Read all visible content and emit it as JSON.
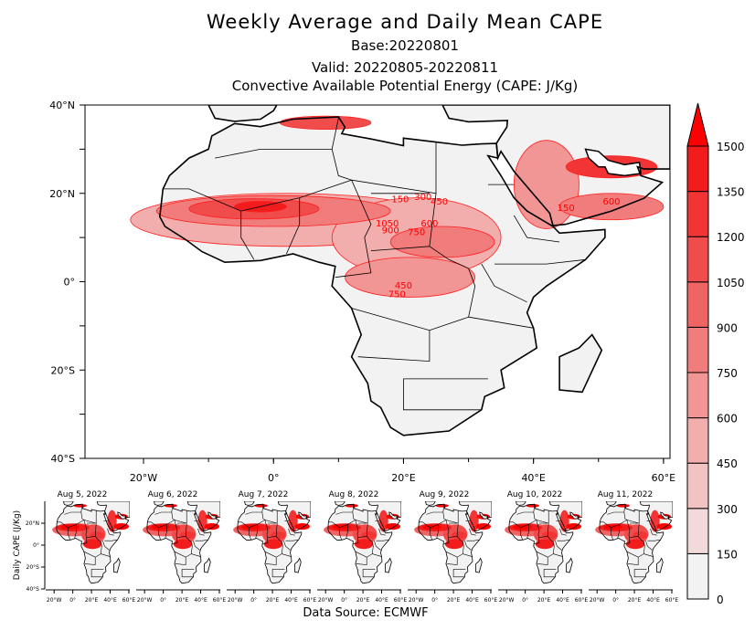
{
  "header": {
    "title": "Weekly Average and Daily Mean CAPE",
    "base": "Base:20220801",
    "valid": "Valid: 20220805-20220811",
    "subtitle": "Convective Available Potential Energy (CAPE: J/Kg)"
  },
  "footer": {
    "source": "Data Source: ECMWF"
  },
  "chart_data": {
    "type": "heatmap",
    "title": "Weekly Average and Daily Mean CAPE",
    "units": "J/Kg",
    "lon_range": [
      -29,
      61
    ],
    "lat_range": [
      -40,
      40
    ],
    "x_ticks": [
      {
        "v": -20,
        "label": "20°W"
      },
      {
        "v": 0,
        "label": "0°"
      },
      {
        "v": 20,
        "label": "20°E"
      },
      {
        "v": 40,
        "label": "40°E"
      },
      {
        "v": 60,
        "label": "60°E"
      }
    ],
    "y_ticks": [
      {
        "v": 40,
        "label": "40°N"
      },
      {
        "v": 20,
        "label": "20°N"
      },
      {
        "v": 0,
        "label": "0°"
      },
      {
        "v": -20,
        "label": "20°S"
      },
      {
        "v": -40,
        "label": "40°S"
      }
    ],
    "colorbar": {
      "levels": [
        "0",
        "150",
        "300",
        "450",
        "600",
        "750",
        "900",
        "1050",
        "1200",
        "1350",
        "1500"
      ],
      "colors": [
        "#f2f2f2",
        "#f3dada",
        "#f2c3c3",
        "#f2adad",
        "#f29595",
        "#f07c7c",
        "#f06464",
        "#f04c4c",
        "#f23434",
        "#f21c1c",
        "#ff0000"
      ]
    },
    "cape_regions": [
      {
        "lon": 2,
        "lat": 14,
        "rlon": 24,
        "rlat": 6,
        "level": 3
      },
      {
        "lon": 22,
        "lat": 10,
        "rlon": 13,
        "rlat": 9,
        "level": 3
      },
      {
        "lon": 21,
        "lat": 1,
        "rlon": 10,
        "rlat": 4.5,
        "level": 4
      },
      {
        "lon": 26,
        "lat": 9,
        "rlon": 8,
        "rlat": 3.5,
        "level": 5
      },
      {
        "lon": 0,
        "lat": 16,
        "rlon": 18,
        "rlat": 3.5,
        "level": 5
      },
      {
        "lon": -3,
        "lat": 16.5,
        "rlon": 10,
        "rlat": 2.3,
        "level": 7
      },
      {
        "lon": -2,
        "lat": 17,
        "rlon": 4,
        "rlat": 1.2,
        "level": 9
      },
      {
        "lon": 42,
        "lat": 22,
        "rlon": 5,
        "rlat": 10,
        "level": 4
      },
      {
        "lon": 52,
        "lat": 17,
        "rlon": 8,
        "rlat": 3,
        "level": 5
      },
      {
        "lon": 52,
        "lat": 26,
        "rlon": 7,
        "rlat": 2.5,
        "level": 8
      },
      {
        "lon": 8,
        "lat": 36,
        "rlon": 7,
        "rlat": 1.5,
        "level": 7
      }
    ],
    "contour_labels": [
      {
        "text": "150",
        "lon": 19.5,
        "lat": 18
      },
      {
        "text": "300",
        "lon": 23,
        "lat": 18.5
      },
      {
        "text": "450",
        "lon": 25.5,
        "lat": 17.5
      },
      {
        "text": "600",
        "lon": 24,
        "lat": 12.5
      },
      {
        "text": "750",
        "lon": 22,
        "lat": 10.5
      },
      {
        "text": "1050",
        "lon": 17.5,
        "lat": 12.5
      },
      {
        "text": "900",
        "lon": 18,
        "lat": 11
      },
      {
        "text": "450",
        "lon": 20,
        "lat": -1.5
      },
      {
        "text": "750",
        "lon": 19,
        "lat": -3.5
      },
      {
        "text": "600",
        "lon": 52,
        "lat": 17.5
      },
      {
        "text": "150",
        "lon": 45,
        "lat": 16
      }
    ],
    "daily_panels": [
      {
        "label": "Aug 5, 2022"
      },
      {
        "label": "Aug 6, 2022"
      },
      {
        "label": "Aug 7, 2022"
      },
      {
        "label": "Aug 8, 2022"
      },
      {
        "label": "Aug 9, 2022"
      },
      {
        "label": "Aug 10, 2022"
      },
      {
        "label": "Aug 11, 2022"
      }
    ],
    "daily_ylabel": "Daily CAPE (J/Kg)",
    "daily_x_ticks": [
      "20°W",
      "0°",
      "20°E",
      "40°E",
      "60°E"
    ],
    "daily_y_ticks": [
      "20°N",
      "0°",
      "20°S",
      "40°S"
    ]
  }
}
